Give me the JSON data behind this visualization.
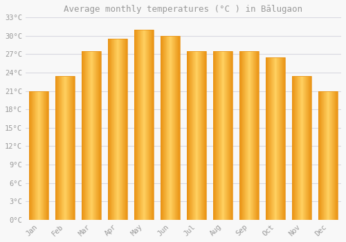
{
  "title": "Average monthly temperatures (°C ) in Bālugaon",
  "months": [
    "Jan",
    "Feb",
    "Mar",
    "Apr",
    "May",
    "Jun",
    "Jul",
    "Aug",
    "Sep",
    "Oct",
    "Nov",
    "Dec"
  ],
  "temperatures": [
    21,
    23.5,
    27.5,
    29.5,
    31,
    30,
    27.5,
    27.5,
    27.5,
    26.5,
    23.5,
    21
  ],
  "bar_color_center": "#FFD060",
  "bar_color_edge": "#E89010",
  "background_color": "#F8F8F8",
  "grid_color": "#D8D8E0",
  "text_color": "#999999",
  "ylim": [
    0,
    33
  ],
  "yticks": [
    0,
    3,
    6,
    9,
    12,
    15,
    18,
    21,
    24,
    27,
    30,
    33
  ],
  "ytick_labels": [
    "0°C",
    "3°C",
    "6°C",
    "9°C",
    "12°C",
    "15°C",
    "18°C",
    "21°C",
    "24°C",
    "27°C",
    "30°C",
    "33°C"
  ],
  "title_fontsize": 9,
  "tick_fontsize": 7.5,
  "font_family": "monospace"
}
